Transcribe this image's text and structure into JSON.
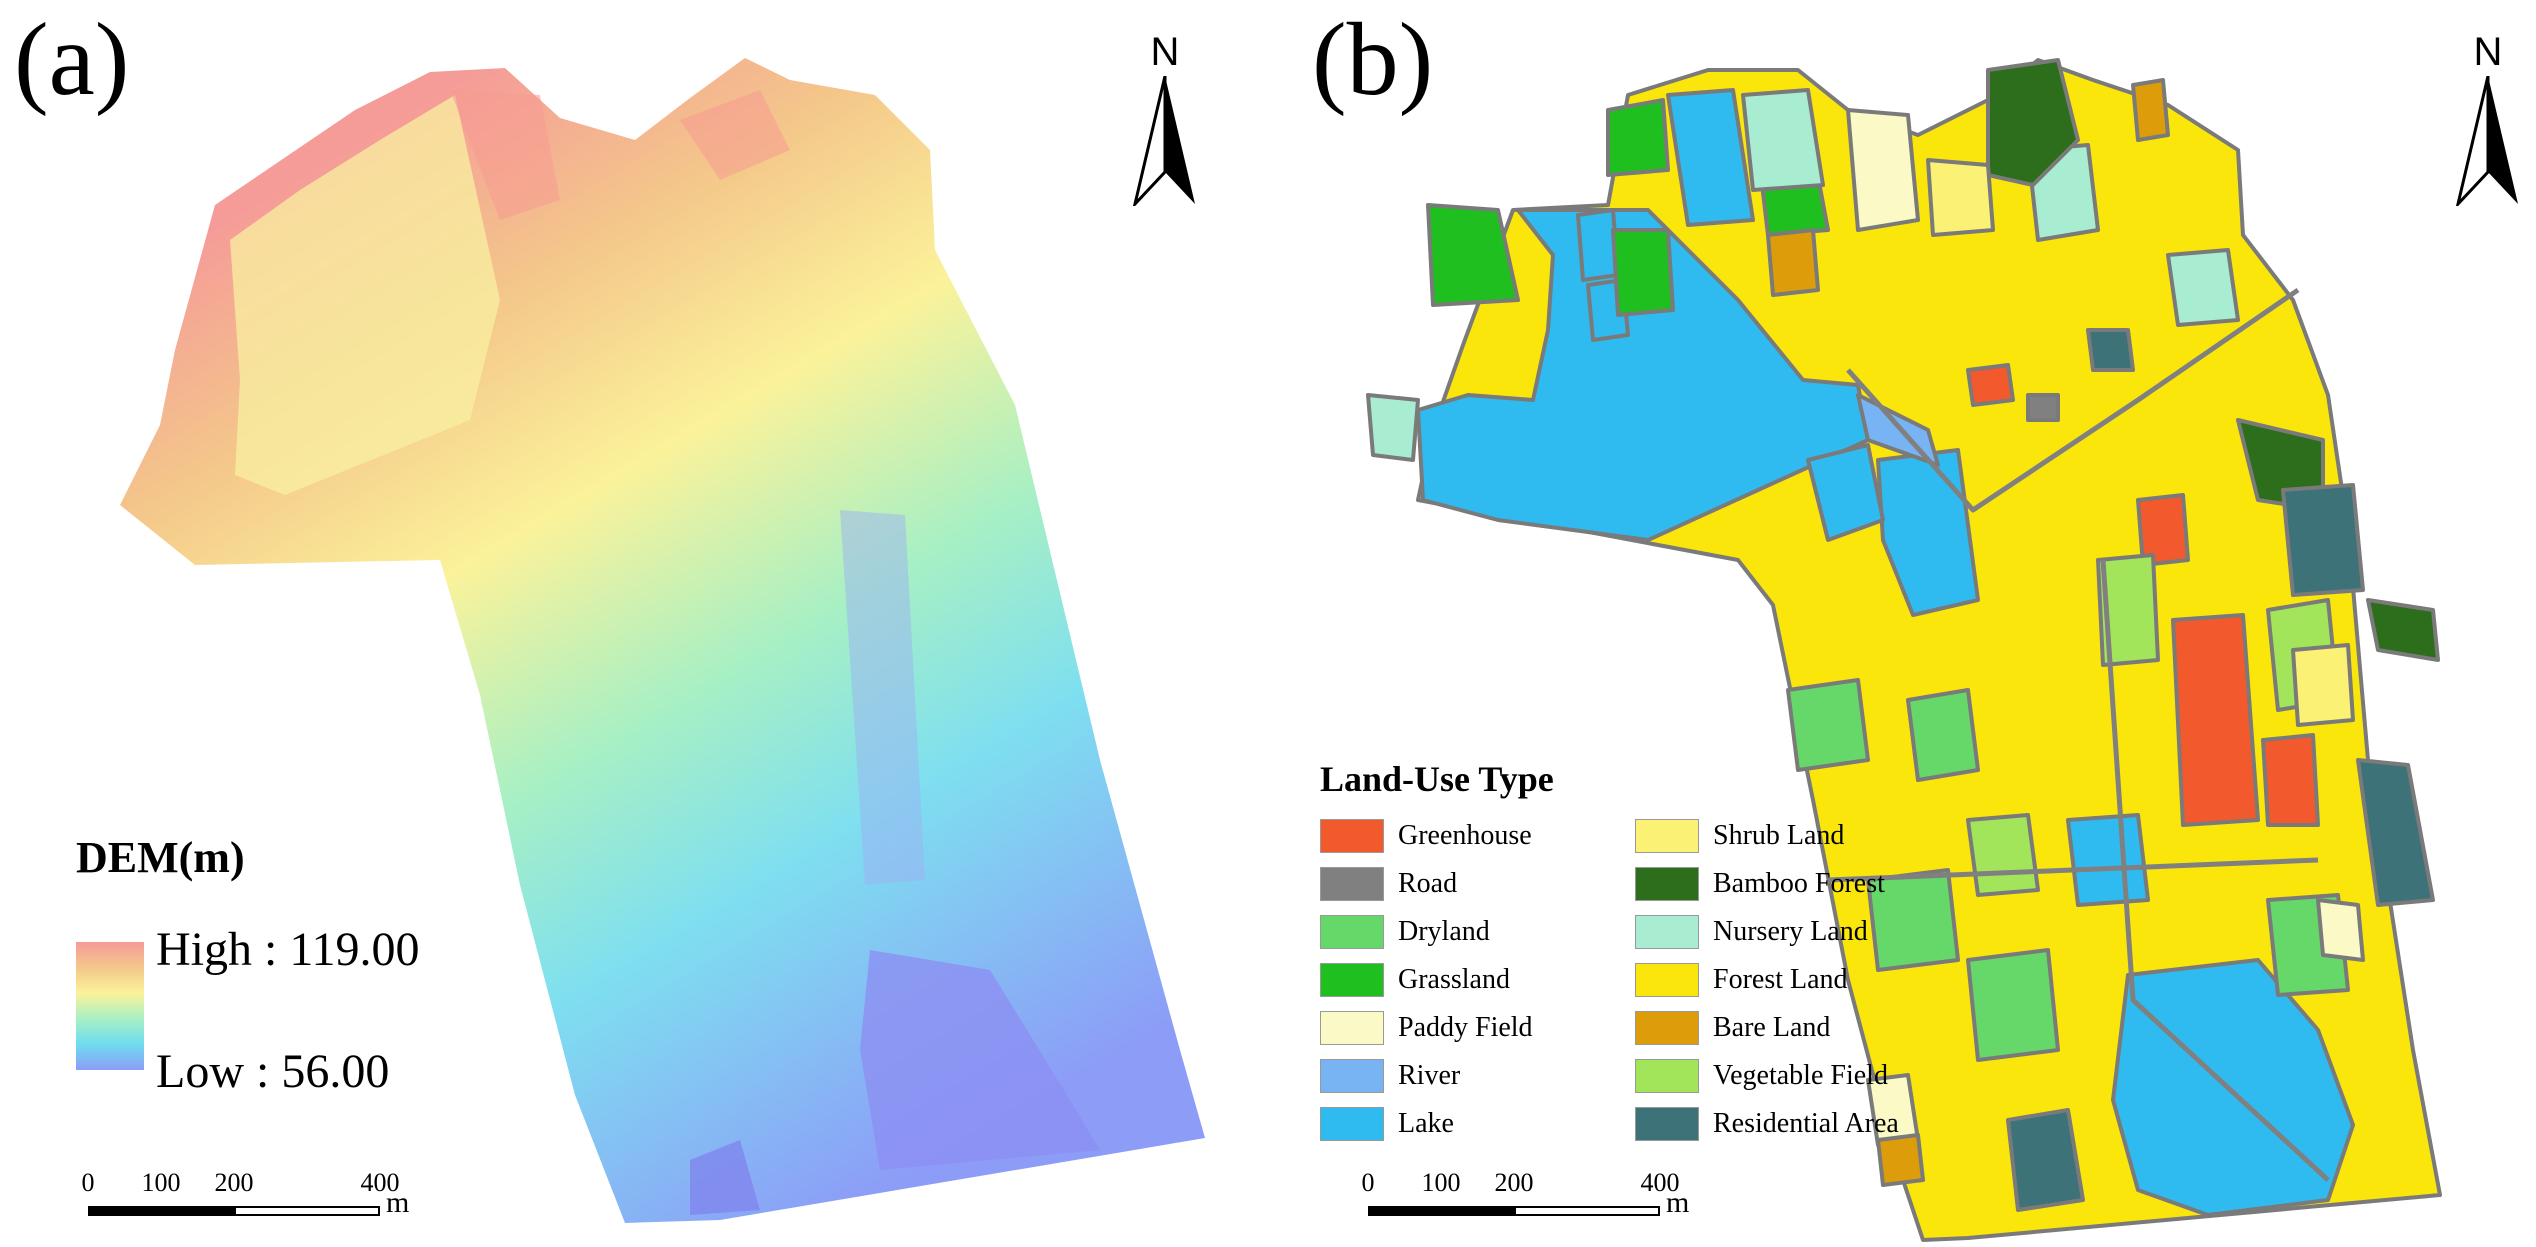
{
  "panel_a": {
    "label": "(a)",
    "north_letter": "N",
    "legend": {
      "title": "DEM(m)",
      "high": "High : 119.00",
      "low": "Low : 56.00",
      "colors": [
        "#f59b98",
        "#f4c78a",
        "#fbf29a",
        "#a8f0c4",
        "#6fdcf0",
        "#8c9cf7"
      ]
    },
    "scale": {
      "labels": [
        "0",
        "100",
        "200",
        "400"
      ],
      "unit": "m"
    }
  },
  "panel_b": {
    "label": "(b)",
    "north_letter": "N",
    "legend": {
      "title": "Land-Use Type",
      "items": [
        {
          "name": "Greenhouse",
          "color": "#f2592c"
        },
        {
          "name": "Shrub Land",
          "color": "#faf175"
        },
        {
          "name": "Road",
          "color": "#808080"
        },
        {
          "name": "Bamboo Forest",
          "color": "#2c6e1b"
        },
        {
          "name": "Dryland",
          "color": "#66d86a"
        },
        {
          "name": "Nursery Land",
          "color": "#a8ecd2"
        },
        {
          "name": "Grassland",
          "color": "#1ebf1e"
        },
        {
          "name": "Forest Land",
          "color": "#fae60a"
        },
        {
          "name": "Paddy Field",
          "color": "#fbf9c6"
        },
        {
          "name": "Bare Land",
          "color": "#dd9d0b"
        },
        {
          "name": "River",
          "color": "#78b4f4"
        },
        {
          "name": "Vegetable Field",
          "color": "#a2e55a"
        },
        {
          "name": "Lake",
          "color": "#2fbbef"
        },
        {
          "name": "Residential Area",
          "color": "#3c7278"
        }
      ]
    },
    "scale": {
      "labels": [
        "0",
        "100",
        "200",
        "400"
      ],
      "unit": "m"
    }
  }
}
